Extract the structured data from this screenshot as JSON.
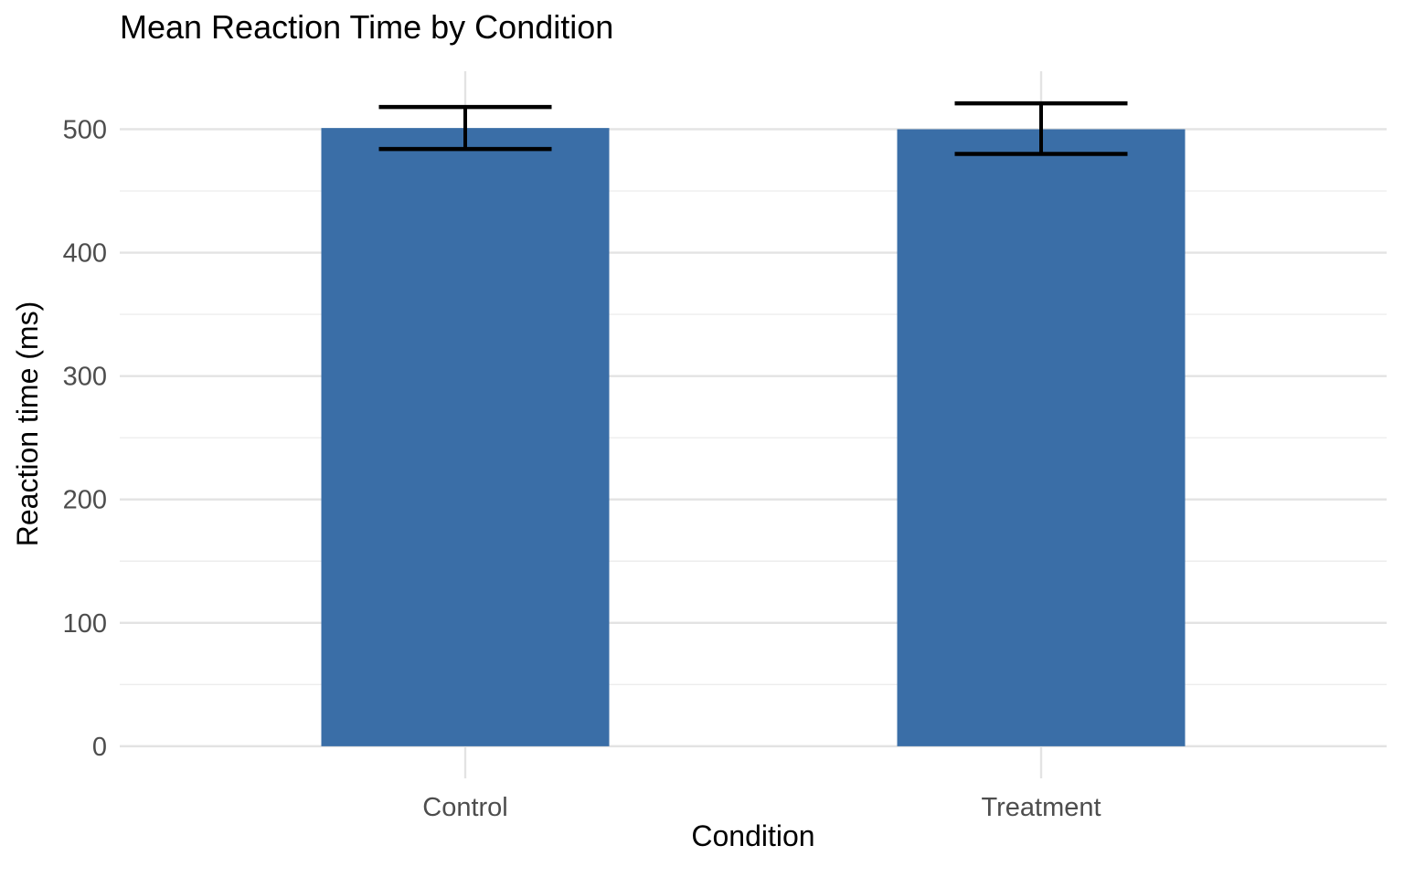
{
  "chart_data": {
    "type": "bar",
    "title": "Mean Reaction Time by Condition",
    "xlabel": "Condition",
    "ylabel": "Reaction time (ms)",
    "categories": [
      "Control",
      "Treatment"
    ],
    "values": [
      501,
      500
    ],
    "error_bars": [
      {
        "category": "Control",
        "lower": 484,
        "upper": 518
      },
      {
        "category": "Treatment",
        "lower": 480,
        "upper": 521
      }
    ],
    "y_ticks": [
      0,
      100,
      200,
      300,
      400,
      500
    ],
    "y_minor_ticks": [
      50,
      150,
      250,
      350,
      450
    ],
    "ylim": [
      -26,
      547
    ],
    "bar_width_fraction": 0.5,
    "errorbar_cap_fraction": 0.3,
    "legend": "none",
    "grid": {
      "horizontal_major": true,
      "horizontal_minor": true,
      "vertical_at_categories": true
    },
    "colors": {
      "bar_fill": "#3A6EA7",
      "error_bar": "#000000",
      "grid_major": "#E3E3E3",
      "grid_minor": "#EDEDED",
      "tick_label": "#4D4D4D",
      "text": "#000000",
      "background": "#FFFFFF"
    }
  }
}
